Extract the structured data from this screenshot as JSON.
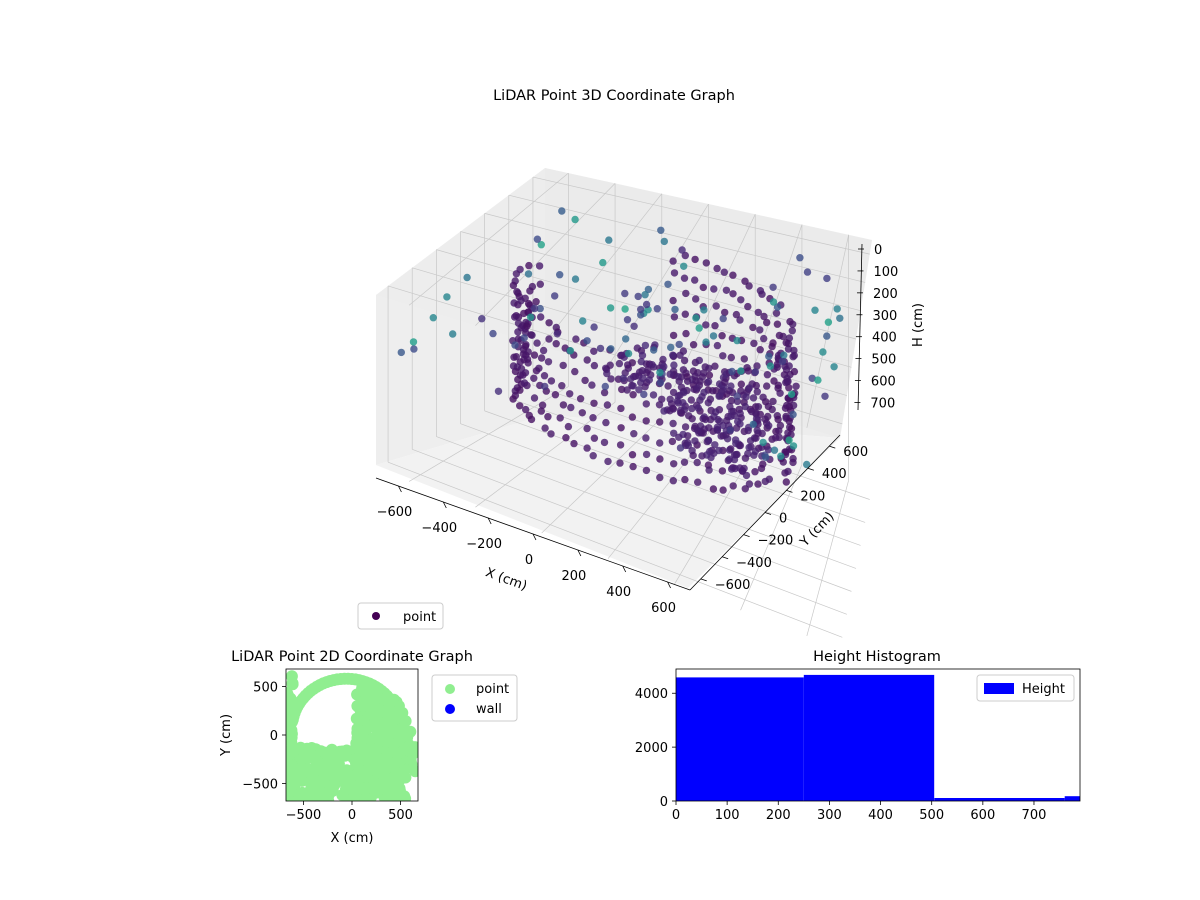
{
  "chart_data": [
    {
      "type": "scatter3d",
      "title": "LiDAR Point 3D Coordinate Graph",
      "xlabel": "X (cm)",
      "ylabel": "Y (cm)",
      "zlabel": "H (cm)",
      "xlim": [
        -700,
        700
      ],
      "ylim": [
        -700,
        700
      ],
      "zlim": [
        0,
        780
      ],
      "z_inverted": true,
      "xticks": [
        "−600",
        "−400",
        "−200",
        "0",
        "200",
        "400",
        "600"
      ],
      "yticks": [
        "−600",
        "−400",
        "−200",
        "0",
        "200",
        "400",
        "600"
      ],
      "zticks": [
        "0",
        "100",
        "200",
        "300",
        "400",
        "500",
        "600",
        "700"
      ],
      "colormap": "viridis",
      "legend": [
        "point"
      ],
      "legend_placement": "bottom-left",
      "grid": true,
      "series": [
        {
          "name": "point",
          "color": "#440154"
        }
      ],
      "shape": {
        "ring_radius_cm": 480,
        "ring_height_range_cm": [
          0,
          500
        ],
        "floor_fan_height_cm": [
          400,
          500
        ],
        "scattered_outliers": true
      }
    },
    {
      "type": "scatter",
      "title": "LiDAR Point 2D Coordinate Graph",
      "xlabel": "X (cm)",
      "ylabel": "Y (cm)",
      "xlim": [
        -680,
        680
      ],
      "ylim": [
        -680,
        680
      ],
      "xticks": [
        "−500",
        "0",
        "500"
      ],
      "yticks": [
        "−500",
        "0",
        "500"
      ],
      "legend": [
        "point",
        "wall"
      ],
      "legend_placement": "outside-right",
      "series": [
        {
          "name": "point",
          "color": "#90ee90"
        },
        {
          "name": "wall",
          "color": "#0000ff"
        }
      ]
    },
    {
      "type": "histogram",
      "title": "Height Histogram",
      "xlim": [
        0,
        790
      ],
      "ylim": [
        0,
        4900
      ],
      "xticks": [
        "0",
        "100",
        "200",
        "300",
        "400",
        "500",
        "600",
        "700"
      ],
      "yticks": [
        "0",
        "2000",
        "4000"
      ],
      "legend": [
        "Height"
      ],
      "legend_placement": "upper-right",
      "series": [
        {
          "name": "Height",
          "color": "#0000ff",
          "bins": [
            {
              "x0": 0,
              "x1": 250,
              "count": 4590
            },
            {
              "x0": 250,
              "x1": 505,
              "count": 4680
            },
            {
              "x0": 505,
              "x1": 760,
              "count": 110
            },
            {
              "x0": 760,
              "x1": 790,
              "count": 180
            }
          ]
        }
      ]
    }
  ]
}
